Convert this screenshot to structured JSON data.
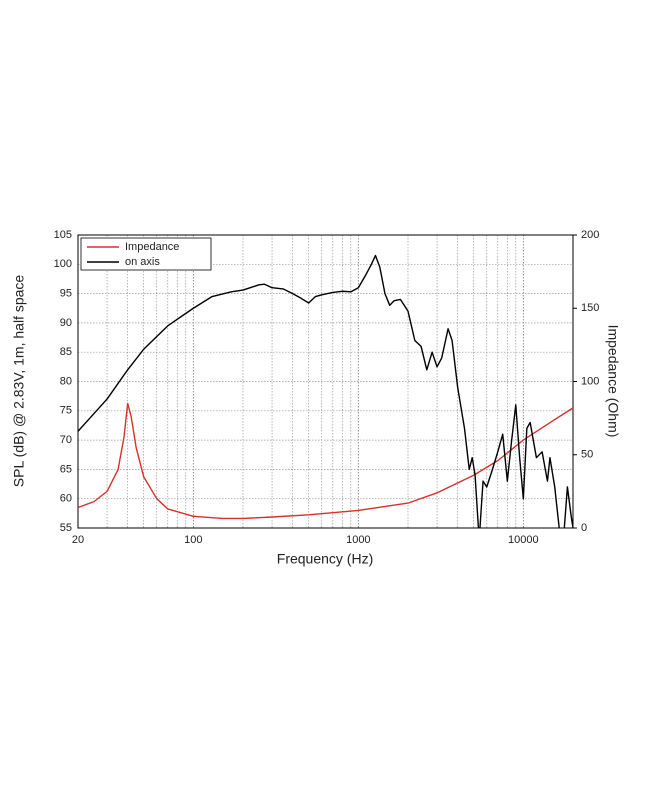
{
  "chart_data": {
    "type": "line",
    "xscale": "log",
    "xlabel": "Frequency (Hz)",
    "ylabel": "SPL (dB) @ 2.83V, 1m, half space",
    "y2label": "Impedance (Ohm)",
    "xlim": [
      20,
      20000
    ],
    "xticks": [
      20,
      100,
      1000,
      10000
    ],
    "xminorticks": [
      30,
      40,
      50,
      60,
      70,
      80,
      90,
      200,
      300,
      400,
      500,
      600,
      700,
      800,
      900,
      2000,
      3000,
      4000,
      5000,
      6000,
      7000,
      8000,
      9000
    ],
    "ylim": [
      55,
      105
    ],
    "yticks": [
      55,
      60,
      65,
      70,
      75,
      80,
      85,
      90,
      95,
      100,
      105
    ],
    "y2lim": [
      0,
      200
    ],
    "y2ticks": [
      0,
      50,
      100,
      150,
      200
    ],
    "grid": true,
    "legend": "upper left",
    "series": [
      {
        "name": "Impedance",
        "color": "#d9302a",
        "axis": "y2",
        "x": [
          20,
          25,
          30,
          35,
          38,
          40,
          42,
          45,
          50,
          60,
          70,
          100,
          150,
          200,
          300,
          500,
          1000,
          2000,
          3000,
          5000,
          7000,
          10000,
          15000,
          20000
        ],
        "values": [
          14,
          18,
          25,
          40,
          62,
          85,
          76,
          55,
          35,
          20,
          13,
          8,
          6.5,
          6.5,
          7.5,
          9,
          12,
          17,
          24,
          36,
          46,
          60,
          73,
          82
        ]
      },
      {
        "name": "on axis",
        "color": "#000000",
        "x": [
          20,
          30,
          40,
          50,
          70,
          100,
          130,
          170,
          200,
          250,
          270,
          300,
          350,
          400,
          450,
          500,
          550,
          600,
          700,
          800,
          900,
          1000,
          1100,
          1200,
          1270,
          1350,
          1450,
          1550,
          1650,
          1800,
          2000,
          2200,
          2400,
          2600,
          2800,
          3000,
          3200,
          3500,
          3700,
          4000,
          4400,
          4700,
          4900,
          5100,
          5400,
          5700,
          6000,
          6500,
          7000,
          7500,
          8000,
          8500,
          9000,
          9500,
          10000,
          10500,
          11000,
          12000,
          13000,
          14000,
          14500,
          15500,
          16500,
          17500,
          18500,
          19500,
          20000
        ],
        "values": [
          71.5,
          77,
          82,
          85.5,
          89.5,
          92.5,
          94.5,
          95.3,
          95.6,
          96.5,
          96.6,
          96,
          95.8,
          95,
          94.2,
          93.4,
          94.5,
          94.8,
          95.2,
          95.4,
          95.3,
          96,
          98,
          100,
          101.5,
          99.5,
          95,
          93,
          93.8,
          94,
          92,
          87,
          86,
          82,
          85,
          82.5,
          84,
          89,
          87,
          79,
          72,
          65,
          67,
          64,
          53,
          63,
          62,
          65,
          68,
          71,
          63,
          70,
          76,
          67,
          60,
          72,
          73,
          67,
          68,
          63,
          67,
          62,
          55,
          53,
          62,
          57,
          55
        ]
      }
    ]
  }
}
